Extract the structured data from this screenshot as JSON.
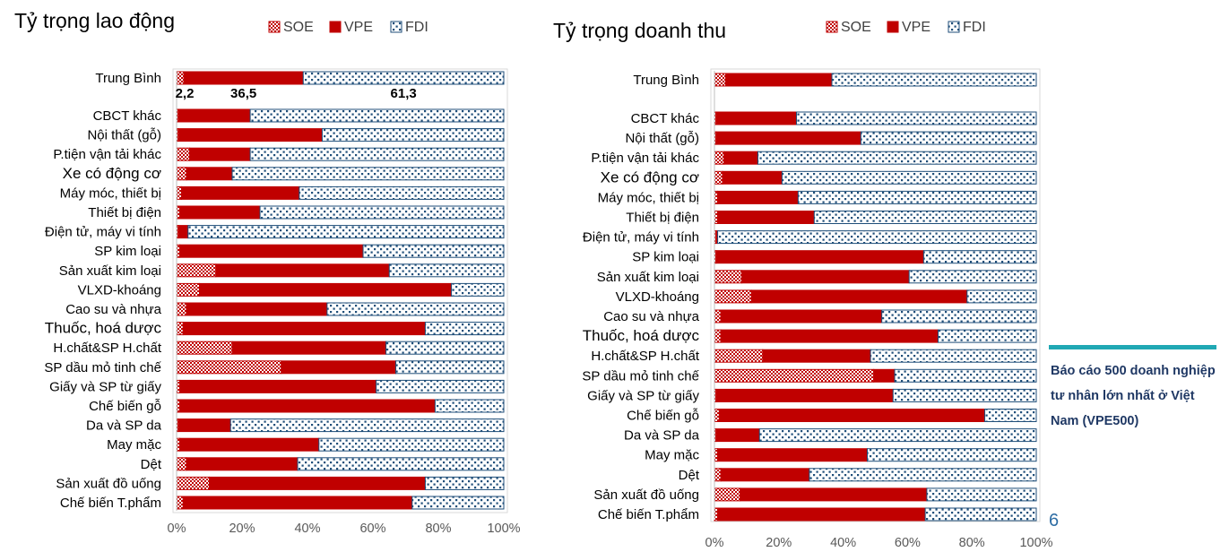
{
  "chart_data": [
    {
      "type": "bar",
      "orientation": "horizontal",
      "stacked": true,
      "title": "Tỷ trọng lao động",
      "legend": [
        "SOE",
        "VPE",
        "FDI"
      ],
      "legend_position": "top",
      "xticks": [
        "0%",
        "20%",
        "40%",
        "60%",
        "80%",
        "100%"
      ],
      "xlim": [
        0,
        100
      ],
      "categories": [
        "Trung Bình",
        "CBCT khác",
        "Nội thất (gỗ)",
        "P.tiện vận tải khác",
        "Xe có động cơ",
        "Máy móc, thiết bị",
        "Thiết bị điện",
        "Điện tử, máy vi tính",
        "SP kim loại",
        "Sản xuất kim loại",
        "VLXD-khoáng",
        "Cao su và nhựa",
        "Thuốc, hoá dược",
        "H.chất&SP H.chất",
        "SP dầu mỏ tinh chế",
        "Giấy và SP từ giấy",
        "Chế biến gỗ",
        "Da và SP da",
        "May mặc",
        "Dệt",
        "Sản xuất đồ uống",
        "Chế biến T.phẩm"
      ],
      "series": [
        {
          "name": "SOE",
          "values": [
            2.2,
            0.5,
            0.5,
            4,
            3,
            1.5,
            1,
            0.5,
            1,
            12,
            7,
            3,
            2,
            17,
            32,
            1,
            1,
            0.5,
            1,
            3,
            10,
            2
          ]
        },
        {
          "name": "VPE",
          "values": [
            36.5,
            22,
            44,
            18.5,
            14,
            36,
            24.5,
            3,
            56,
            53,
            77,
            43,
            74,
            47,
            35,
            60,
            78,
            16,
            42.5,
            34,
            66,
            70
          ]
        },
        {
          "name": "FDI",
          "values": [
            61.3,
            77.5,
            55.5,
            77.5,
            83,
            62.5,
            74.5,
            96.5,
            43,
            35,
            16,
            54,
            24,
            36,
            33,
            39,
            21,
            83.5,
            56.5,
            63,
            24,
            28
          ]
        }
      ],
      "data_labels": [
        "2,2",
        "36,5",
        "61,3"
      ]
    },
    {
      "type": "bar",
      "orientation": "horizontal",
      "stacked": true,
      "title": "Tỷ trọng doanh thu",
      "legend": [
        "SOE",
        "VPE",
        "FDI"
      ],
      "legend_position": "top",
      "xticks": [
        "0%",
        "20%",
        "40%",
        "60%",
        "80%",
        "100%"
      ],
      "xlim": [
        0,
        100
      ],
      "categories": [
        "Trung Bình",
        "CBCT khác",
        "Nội thất (gỗ)",
        "P.tiện vận tải khác",
        "Xe có động cơ",
        "Máy móc, thiết bị",
        "Thiết bị điện",
        "Điện tử, máy vi tính",
        "SP kim loại",
        "Sản xuất kim loại",
        "VLXD-khoáng",
        "Cao su và nhựa",
        "Thuốc, hoá dược",
        "H.chất&SP H.chất",
        "SP dầu mỏ tinh chế",
        "Giấy và SP từ giấy",
        "Chế biến gỗ",
        "Da và SP da",
        "May mặc",
        "Dệt",
        "Sản xuất đồ uống",
        "Chế biến T.phẩm"
      ],
      "series": [
        {
          "name": "SOE",
          "values": [
            3.5,
            0.5,
            0.5,
            3,
            2.5,
            1,
            1,
            0.5,
            0.5,
            8.5,
            11.5,
            2,
            2,
            15,
            49.5,
            0.5,
            1.5,
            0.5,
            1,
            2,
            8,
            1
          ]
        },
        {
          "name": "VPE",
          "values": [
            33,
            25,
            45,
            10.5,
            18.5,
            25,
            30,
            0.5,
            64.5,
            52,
            67,
            50,
            67.5,
            33.5,
            6.5,
            55,
            82.5,
            13.5,
            46.5,
            27.5,
            58,
            64.5
          ]
        },
        {
          "name": "FDI",
          "values": [
            63.5,
            74.5,
            54.5,
            86.5,
            79,
            74,
            69,
            99,
            35,
            39.5,
            21.5,
            48,
            30.5,
            51.5,
            44,
            44.5,
            16,
            86,
            52.5,
            70.5,
            34,
            34.5
          ]
        }
      ]
    }
  ],
  "side_note": "Báo cáo 500 doanh nghiệp tư nhân lớn nhất ở Việt Nam (VPE500)",
  "page_number": "6",
  "colors": {
    "soe": "#c00000",
    "vpe": "#c00000",
    "fdi": "#1f4e79"
  }
}
